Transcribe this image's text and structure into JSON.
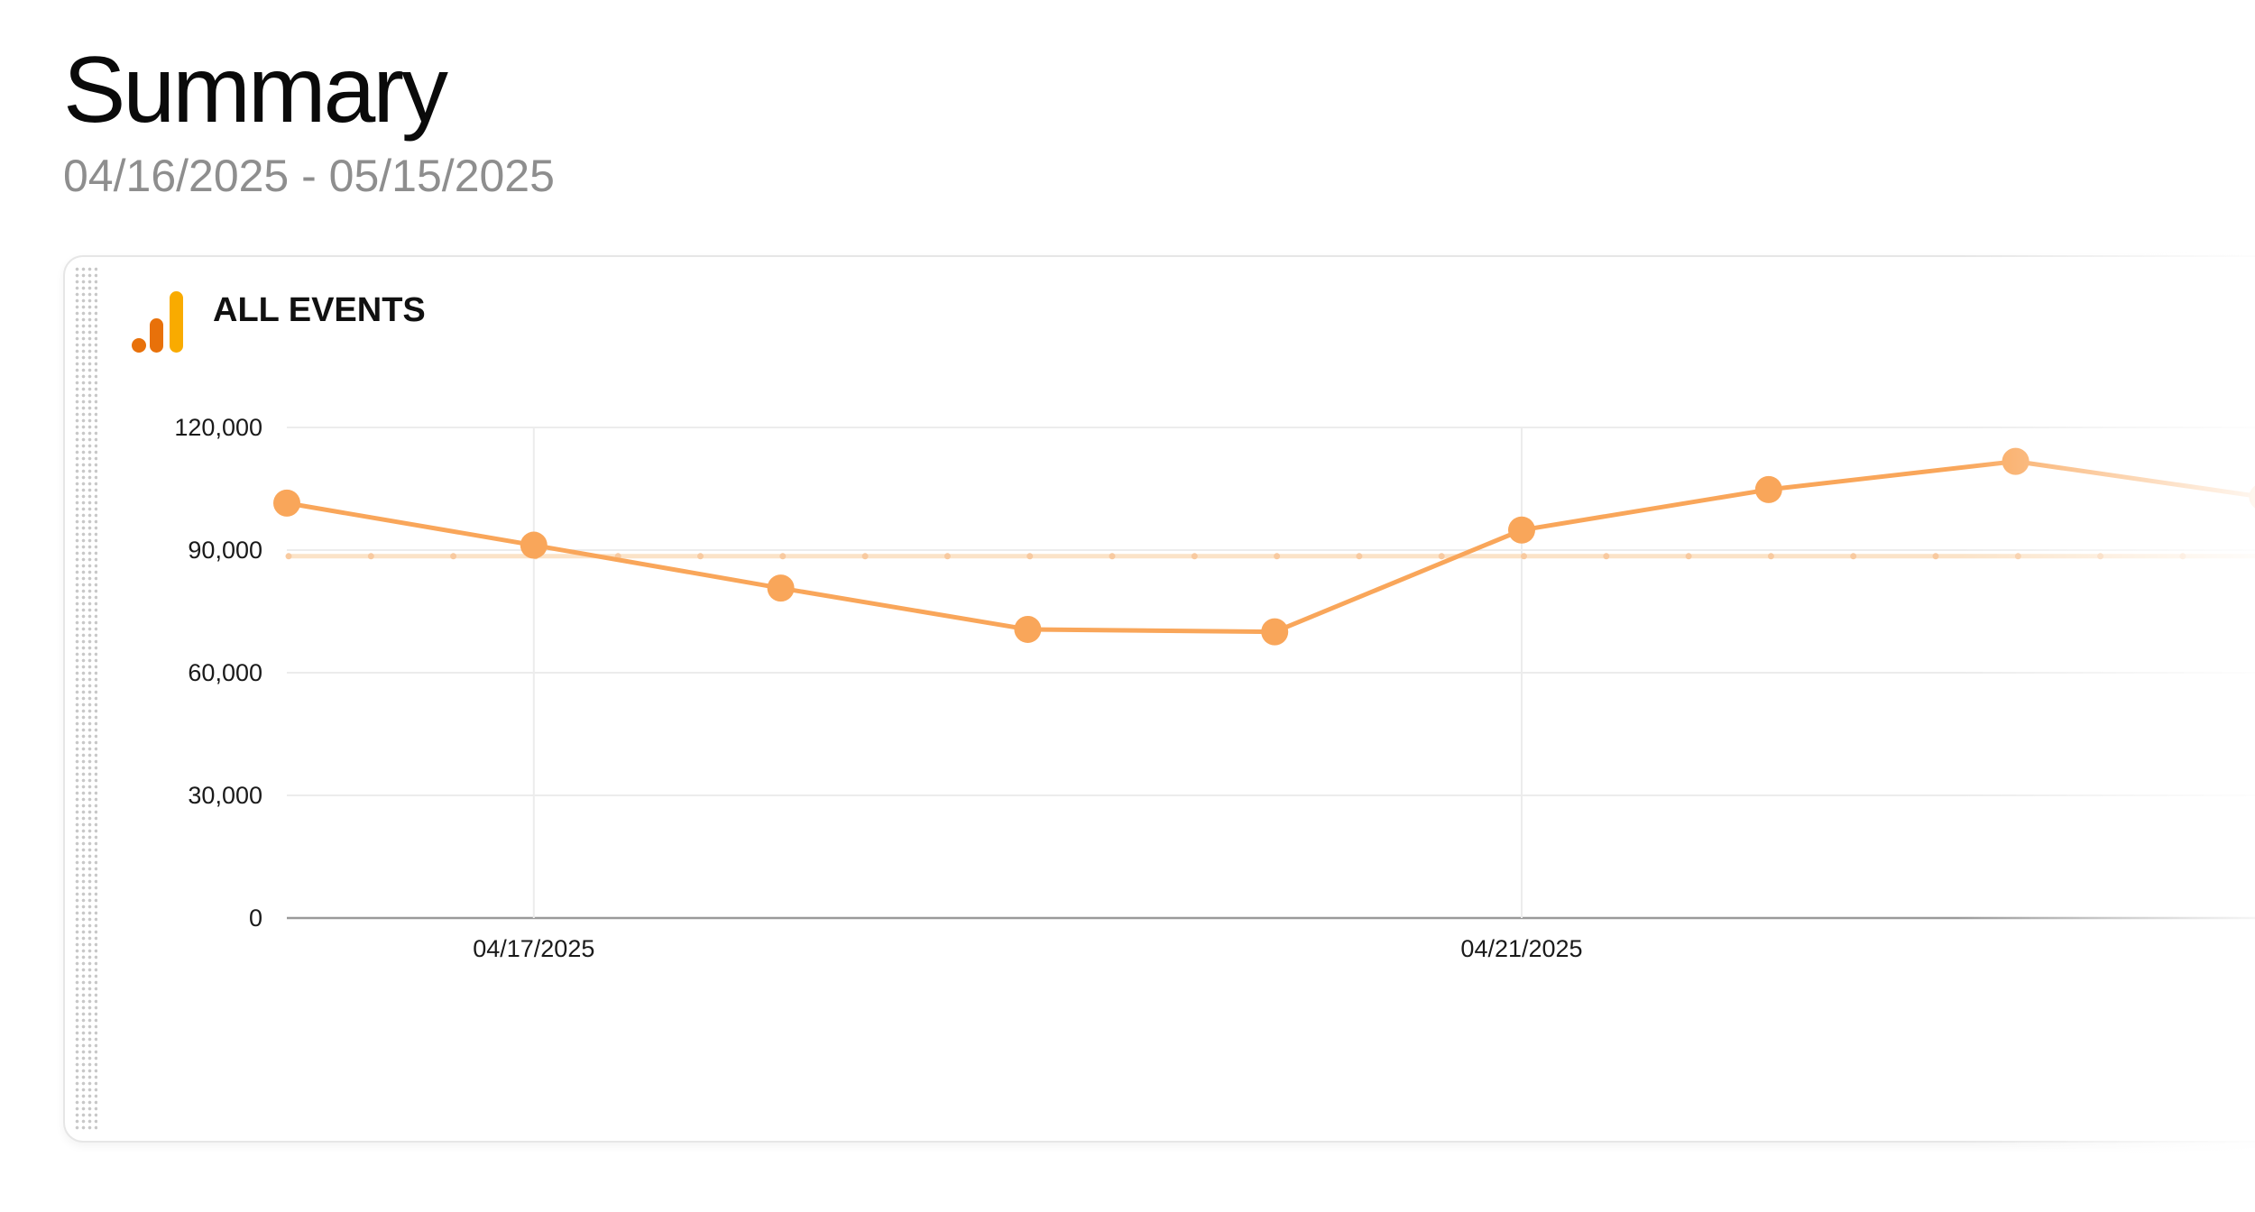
{
  "header": {
    "title": "Summary",
    "date_range": "04/16/2025 - 05/15/2025"
  },
  "card": {
    "title": "ALL EVENTS",
    "icon": "analytics-bar-icon",
    "icon_colors": [
      "#e8710a",
      "#f9ab00"
    ]
  },
  "colors": {
    "line": "#f9a65a",
    "average_line": "#fbe3c8",
    "grid": "#ececec",
    "axis": "#9a9a9a"
  },
  "chart_data": {
    "type": "line",
    "title": "ALL EVENTS",
    "x": [
      "04/16/2025",
      "04/17/2025",
      "04/18/2025",
      "04/19/2025",
      "04/20/2025",
      "04/21/2025",
      "04/22/2025",
      "04/23/2025",
      "04/24/2025"
    ],
    "x_tick_labels": [
      "04/17/2025",
      "04/21/2025"
    ],
    "series": [
      {
        "values": [
          101500,
          91200,
          80700,
          70600,
          70000,
          94900,
          104800,
          111700,
          103000
        ]
      }
    ],
    "average_value": 88500,
    "y_ticks": [
      0,
      30000,
      60000,
      90000,
      120000
    ],
    "y_tick_labels": [
      "0",
      "30,000",
      "60,000",
      "90,000",
      "120,000"
    ],
    "ylim": [
      0,
      120000
    ],
    "grid": true,
    "legend": "none"
  }
}
